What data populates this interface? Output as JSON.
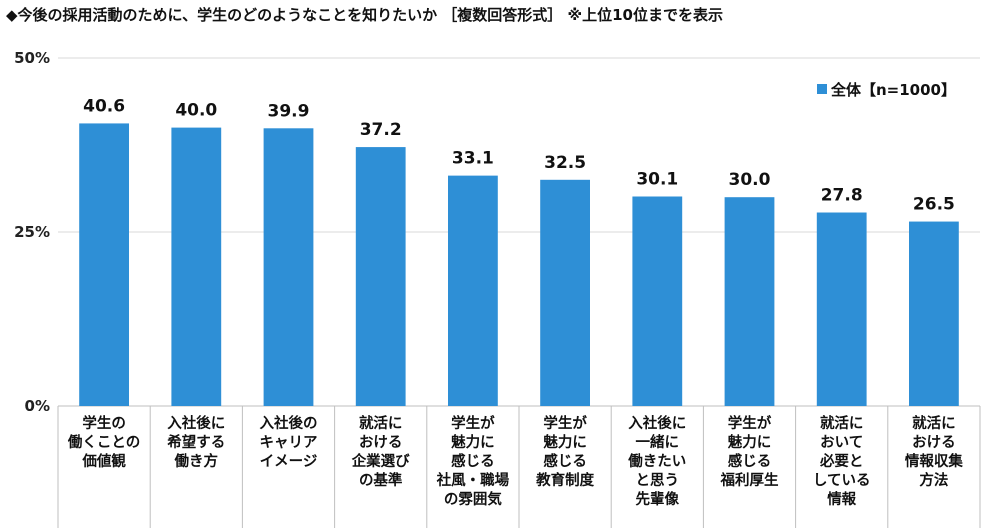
{
  "title": "◆今後の採用活動のために、学生のどのようなことを知りたいか ［複数回答形式］ ※上位10位までを表示",
  "colors": {
    "bar": "#2E8FD6",
    "grid": "#D9D9D9",
    "axis": "#BFBFBF"
  },
  "chart_data": {
    "type": "bar",
    "title": "◆今後の採用活動のために、学生のどのようなことを知りたいか ［複数回答形式］ ※上位10位までを表示",
    "categories": [
      [
        "学生の",
        "働くことの",
        "価値観"
      ],
      [
        "入社後に",
        "希望する",
        "働き方"
      ],
      [
        "入社後の",
        "キャリア",
        "イメージ"
      ],
      [
        "就活に",
        "おける",
        "企業選び",
        "の基準"
      ],
      [
        "学生が",
        "魅力に",
        "感じる",
        "社風・職場",
        "の雰囲気"
      ],
      [
        "学生が",
        "魅力に",
        "感じる",
        "教育制度"
      ],
      [
        "入社後に",
        "一緒に",
        "働きたい",
        "と思う",
        "先輩像"
      ],
      [
        "学生が",
        "魅力に",
        "感じる",
        "福利厚生"
      ],
      [
        "就活に",
        "おいて",
        "必要と",
        "している",
        "情報"
      ],
      [
        "就活に",
        "おける",
        "情報収集",
        "方法"
      ]
    ],
    "series": [
      {
        "name": "全体【n=1000】",
        "values": [
          40.6,
          40.0,
          39.9,
          37.2,
          33.1,
          32.5,
          30.1,
          30.0,
          27.8,
          26.5
        ]
      }
    ],
    "value_labels": [
      "40.6",
      "40.0",
      "39.9",
      "37.2",
      "33.1",
      "32.5",
      "30.1",
      "30.0",
      "27.8",
      "26.5"
    ],
    "yticks": [
      0,
      25,
      50
    ],
    "ytick_labels": [
      "0%",
      "25%",
      "50%"
    ],
    "ylim": [
      0,
      50
    ],
    "xlabel": "",
    "ylabel": "",
    "legend": {
      "label": "全体【n=1000】",
      "position": "top-right"
    },
    "grid": true
  }
}
